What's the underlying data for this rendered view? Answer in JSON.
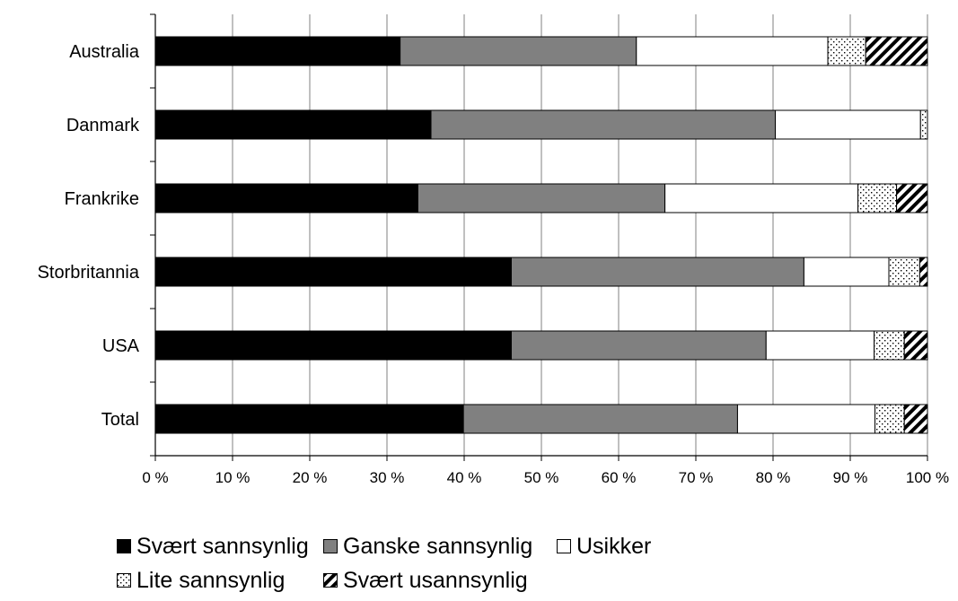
{
  "chart_data": {
    "type": "bar",
    "orientation": "horizontal",
    "stacked": true,
    "categories": [
      "Australia",
      "Danmark",
      "Frankrike",
      "Storbritannia",
      "USA",
      "Total"
    ],
    "xlim": [
      0,
      100
    ],
    "x_ticks": [
      "0 %",
      "10 %",
      "20 %",
      "30 %",
      "40 %",
      "50 %",
      "60 %",
      "70 %",
      "80 %",
      "90 %",
      "100 %"
    ],
    "grid": "vertical",
    "legend_position": "bottom",
    "series": [
      {
        "name": "Svært sannsynlig",
        "pattern": "solid-black",
        "values": [
          31.7,
          35.7,
          34.0,
          46.1,
          46.1,
          39.9
        ]
      },
      {
        "name": "Ganske sannsynlig",
        "pattern": "solid-gray",
        "values": [
          30.6,
          44.6,
          32.0,
          37.9,
          33.0,
          35.5
        ]
      },
      {
        "name": "Usikker",
        "pattern": "white",
        "values": [
          24.8,
          18.8,
          25.0,
          11.0,
          14.0,
          17.8
        ]
      },
      {
        "name": "Lite sannsynlig",
        "pattern": "dotted",
        "values": [
          4.9,
          0.9,
          5.0,
          4.0,
          3.9,
          3.8
        ]
      },
      {
        "name": "Svært usannsynlig",
        "pattern": "hatched",
        "values": [
          8.0,
          0.0,
          4.0,
          1.0,
          3.0,
          3.0
        ]
      }
    ]
  }
}
